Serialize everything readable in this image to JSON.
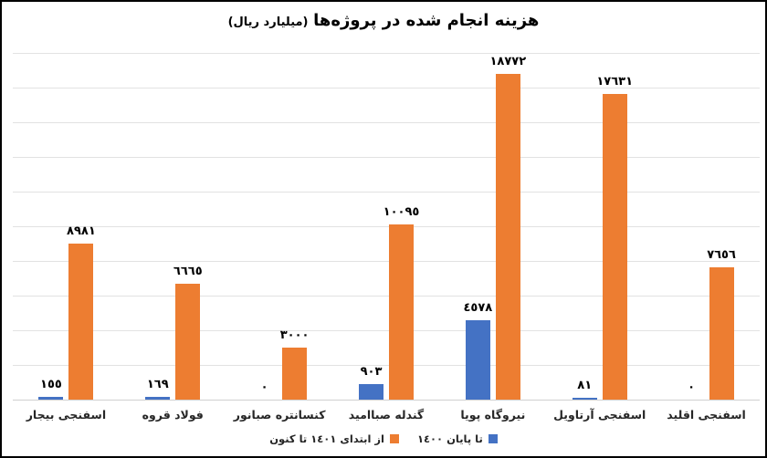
{
  "title": {
    "main": "هزینه انجام شده در پروژه‌ها",
    "unit": "(میلیارد ریال)"
  },
  "legend": {
    "items": [
      {
        "label": "تا پایان ١٤٠٠",
        "color": "#4472C4"
      },
      {
        "label": "از ابتدای ١٤٠١ تا کنون",
        "color": "#ED7D31"
      }
    ]
  },
  "chart_data": {
    "type": "bar",
    "title": "هزینه انجام شده در پروژه‌ها (میلیارد ریال)",
    "categories": [
      "اسفنجی بیجار",
      "فولاد قروه",
      "کنسانتره صبانور",
      "گندله صباامید",
      "نیروگاه پویا",
      "اسفنجی آرتاویل",
      "اسفنجی اقلید"
    ],
    "series": [
      {
        "name": "تا پایان ١٤٠٠",
        "color": "#4472C4",
        "values": [
          155,
          169,
          0,
          903,
          4578,
          81,
          0
        ],
        "value_labels": [
          "١٥٥",
          "١٦٩",
          "٠",
          "٩٠٣",
          "٤٥٧٨",
          "٨١",
          "٠"
        ]
      },
      {
        "name": "از ابتدای ١٤٠١ تا کنون",
        "color": "#ED7D31",
        "values": [
          8981,
          6665,
          3000,
          10095,
          18772,
          17631,
          7656
        ],
        "value_labels": [
          "٨٩٨١",
          "٦٦٦٥",
          "٣٠٠٠",
          "١٠٠٩٥",
          "١٨٧٧٢",
          "١٧٦٣١",
          "٧٦٥٦"
        ]
      }
    ],
    "ylim": [
      0,
      20000
    ],
    "gridline_interval": 2000,
    "grid": true,
    "y_axis_labels_visible": false,
    "legend_position": "bottom"
  },
  "colors": {
    "background": "#FFFFFF",
    "border": "#000000",
    "gridline": "#E2E2E2",
    "axis_line": "#D0D0D0"
  }
}
